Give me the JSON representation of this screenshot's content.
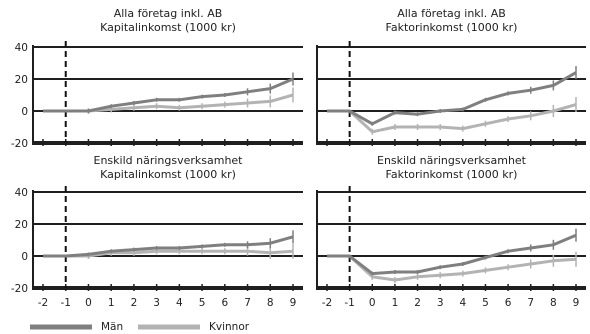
{
  "colors": {
    "man": "#7f7f7f",
    "kvinna": "#b3b3b3",
    "axis": "#1f1f1f",
    "dashed": "#111111"
  },
  "legend": {
    "man": "Män",
    "kvinna": "Kvinnor"
  },
  "chart_data": [
    {
      "type": "line",
      "title": "Alla företag inkl. AB",
      "subtitle": "Kapitalinkomst (1000 kr)",
      "x": [
        -2,
        -1,
        0,
        1,
        2,
        3,
        4,
        5,
        6,
        7,
        8,
        9
      ],
      "ylim": [
        -20,
        40
      ],
      "yticks": [
        -20,
        0,
        20,
        40
      ],
      "reference_line_x": -1,
      "series": [
        {
          "name": "Män",
          "values": [
            0,
            0,
            0,
            3,
            5,
            7,
            7,
            9,
            10,
            12,
            14,
            20
          ]
        },
        {
          "name": "Kvinnor",
          "values": [
            0,
            0,
            0,
            1,
            2,
            3,
            2,
            3,
            4,
            5,
            6,
            10
          ]
        }
      ]
    },
    {
      "type": "line",
      "title": "Alla företag inkl. AB",
      "subtitle": "Faktorinkomst (1000 kr)",
      "x": [
        -2,
        -1,
        0,
        1,
        2,
        3,
        4,
        5,
        6,
        7,
        8,
        9
      ],
      "ylim": [
        -20,
        40
      ],
      "yticks": [
        -20,
        0,
        20,
        40
      ],
      "reference_line_x": -1,
      "series": [
        {
          "name": "Män",
          "values": [
            0,
            0,
            -8,
            -1,
            -2,
            0,
            1,
            7,
            11,
            13,
            16,
            24
          ]
        },
        {
          "name": "Kvinnor",
          "values": [
            0,
            0,
            -13,
            -10,
            -10,
            -10,
            -11,
            -8,
            -5,
            -3,
            0,
            4
          ]
        }
      ]
    },
    {
      "type": "line",
      "title": "Enskild näringsverksamhet",
      "subtitle": "Kapitalinkomst (1000 kr)",
      "x": [
        -2,
        -1,
        0,
        1,
        2,
        3,
        4,
        5,
        6,
        7,
        8,
        9
      ],
      "ylim": [
        -20,
        40
      ],
      "yticks": [
        -20,
        0,
        20,
        40
      ],
      "reference_line_x": -1,
      "series": [
        {
          "name": "Män",
          "values": [
            0,
            0,
            1,
            3,
            4,
            5,
            5,
            6,
            7,
            7,
            8,
            12
          ]
        },
        {
          "name": "Kvinnor",
          "values": [
            0,
            0,
            0,
            2,
            2,
            3,
            3,
            3,
            3,
            3,
            2,
            3
          ]
        }
      ]
    },
    {
      "type": "line",
      "title": "Enskild näringsverksamhet",
      "subtitle": "Faktorinkomst (1000 kr)",
      "x": [
        -2,
        -1,
        0,
        1,
        2,
        3,
        4,
        5,
        6,
        7,
        8,
        9
      ],
      "ylim": [
        -20,
        40
      ],
      "yticks": [
        -20,
        0,
        20,
        40
      ],
      "reference_line_x": -1,
      "series": [
        {
          "name": "Män",
          "values": [
            0,
            0,
            -11,
            -10,
            -10,
            -7,
            -5,
            -1,
            3,
            5,
            7,
            13
          ]
        },
        {
          "name": "Kvinnor",
          "values": [
            0,
            0,
            -13,
            -15,
            -13,
            -12,
            -11,
            -9,
            -7,
            -5,
            -3,
            -2
          ]
        }
      ]
    }
  ]
}
